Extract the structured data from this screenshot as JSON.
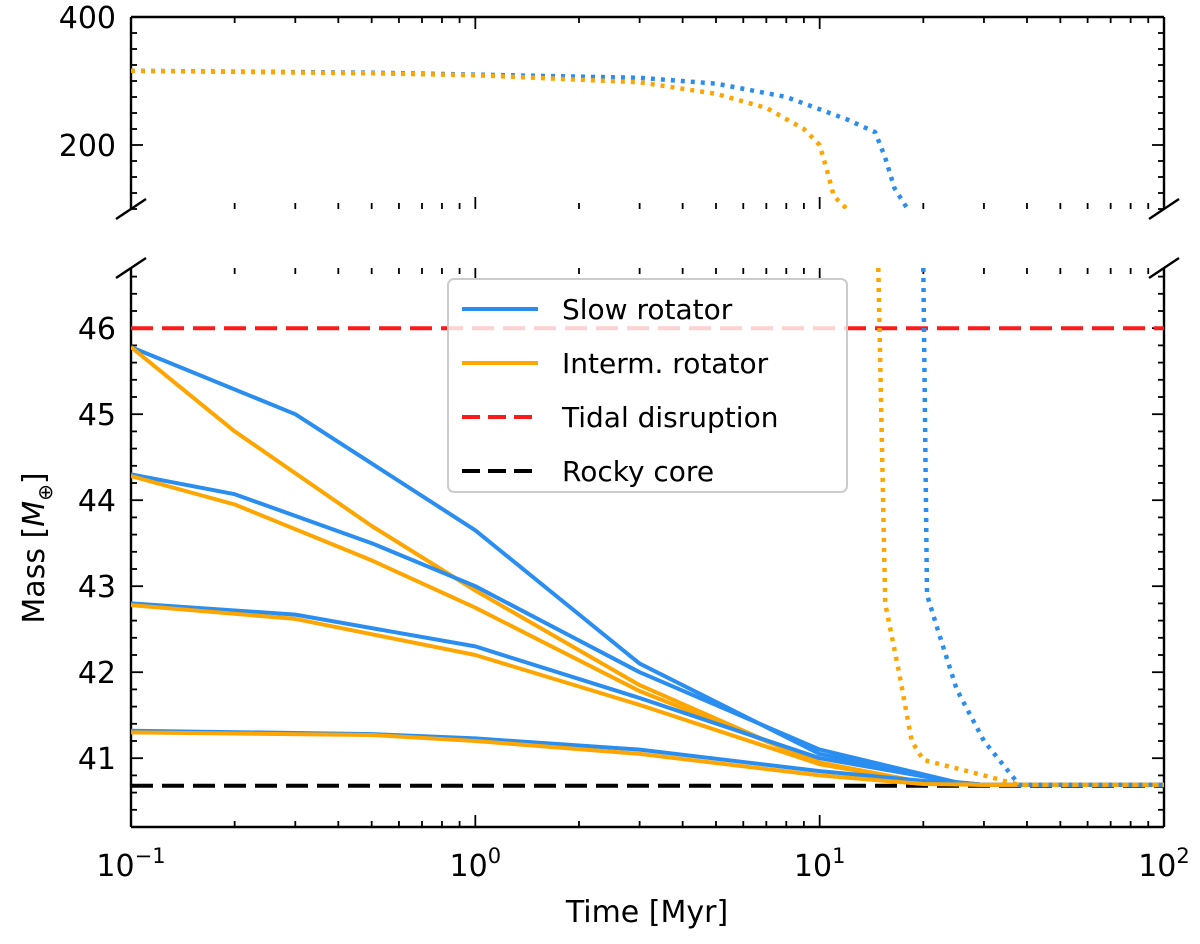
{
  "chart_data": {
    "type": "line",
    "title": "",
    "xlabel": "Time [Myr]",
    "ylabel": "Mass [",
    "ylabel_symbol": "M",
    "ylabel_subscript": "⊕",
    "ylabel_close": "]",
    "xscale": "log",
    "xlim": [
      0.1,
      100
    ],
    "x_ticks": [
      {
        "value": 0.1,
        "base": "10",
        "exp": "−1"
      },
      {
        "value": 1,
        "base": "10",
        "exp": "0"
      },
      {
        "value": 10,
        "base": "10",
        "exp": "1"
      },
      {
        "value": 100,
        "base": "10",
        "exp": "2"
      }
    ],
    "panels": {
      "top": {
        "ylim": [
          100,
          400
        ],
        "ticks": [
          {
            "value": 200,
            "label": "200"
          },
          {
            "value": 400,
            "label": "400"
          }
        ]
      },
      "bottom": {
        "ylim": [
          40.2,
          46.7
        ],
        "ticks": [
          {
            "value": 41,
            "label": "41"
          },
          {
            "value": 42,
            "label": "42"
          },
          {
            "value": 43,
            "label": "43"
          },
          {
            "value": 44,
            "label": "44"
          },
          {
            "value": 45,
            "label": "45"
          },
          {
            "value": 46,
            "label": "46"
          }
        ]
      }
    },
    "colors": {
      "slow": "#2a8ef0",
      "interm": "#ffa500",
      "tidal": "#ff1a1a",
      "core": "#000000"
    },
    "legend": {
      "location": "upper center",
      "entries": [
        {
          "label": "Slow rotator",
          "color": "#2a8ef0",
          "style": "solid"
        },
        {
          "label": "Interm. rotator",
          "color": "#ffa500",
          "style": "solid"
        },
        {
          "label": "Tidal disruption",
          "color": "#ff1a1a",
          "style": "dashed"
        },
        {
          "label": "Rocky core",
          "color": "#000000",
          "style": "dashed"
        }
      ]
    },
    "hlines": [
      {
        "name": "Tidal disruption",
        "y": 46.0,
        "color": "#ff1a1a"
      },
      {
        "name": "Rocky core",
        "y": 40.68,
        "color": "#000000"
      }
    ],
    "series": [
      {
        "name": "Slow rotator (46 Me start)",
        "rotator": "slow",
        "style": "solid",
        "x": [
          0.1,
          0.3,
          1,
          3,
          10,
          25,
          30,
          100
        ],
        "y": [
          45.78,
          45.0,
          43.65,
          42.1,
          41.05,
          40.72,
          40.69,
          40.69
        ]
      },
      {
        "name": "Interm. rotator (46 Me start)",
        "rotator": "interm",
        "style": "solid",
        "x": [
          0.1,
          0.2,
          0.5,
          1,
          3,
          10,
          20,
          30,
          100
        ],
        "y": [
          45.78,
          44.8,
          43.7,
          42.95,
          41.85,
          40.93,
          40.72,
          40.69,
          40.69
        ]
      },
      {
        "name": "Slow rotator (44.3 Me start)",
        "rotator": "slow",
        "style": "solid",
        "x": [
          0.1,
          0.2,
          0.5,
          1,
          3,
          10,
          25,
          30,
          100
        ],
        "y": [
          44.3,
          44.07,
          43.5,
          43.0,
          42.0,
          41.1,
          40.72,
          40.69,
          40.69
        ]
      },
      {
        "name": "Interm. rotator (44.3 Me start)",
        "rotator": "interm",
        "style": "solid",
        "x": [
          0.1,
          0.2,
          0.5,
          1,
          3,
          10,
          20,
          30,
          100
        ],
        "y": [
          44.28,
          43.95,
          43.3,
          42.75,
          41.78,
          40.95,
          40.72,
          40.69,
          40.69
        ]
      },
      {
        "name": "Slow rotator (42.8 Me start)",
        "rotator": "slow",
        "style": "solid",
        "x": [
          0.1,
          0.3,
          1,
          3,
          10,
          25,
          30,
          100
        ],
        "y": [
          42.8,
          42.67,
          42.3,
          41.7,
          41.0,
          40.72,
          40.69,
          40.69
        ]
      },
      {
        "name": "Interm. rotator (42.8 Me start)",
        "rotator": "interm",
        "style": "solid",
        "x": [
          0.1,
          0.3,
          1,
          3,
          10,
          20,
          30,
          100
        ],
        "y": [
          42.78,
          42.62,
          42.2,
          41.62,
          40.93,
          40.72,
          40.69,
          40.69
        ]
      },
      {
        "name": "Slow rotator (41.3 Me start)",
        "rotator": "slow",
        "style": "solid",
        "x": [
          0.1,
          0.5,
          1,
          3,
          10,
          25,
          30,
          100
        ],
        "y": [
          41.32,
          41.28,
          41.23,
          41.1,
          40.85,
          40.7,
          40.69,
          40.69
        ]
      },
      {
        "name": "Interm. rotator (41.3 Me start)",
        "rotator": "interm",
        "style": "solid",
        "x": [
          0.1,
          0.5,
          1,
          3,
          10,
          20,
          30,
          100
        ],
        "y": [
          41.3,
          41.27,
          41.2,
          41.05,
          40.8,
          40.7,
          40.69,
          40.69
        ]
      },
      {
        "name": "Slow rotator (large envelope, bottom)",
        "rotator": "slow",
        "style": "dotted",
        "x": [
          20,
          20.5,
          22,
          25,
          30,
          38,
          100
        ],
        "y": [
          46.7,
          42.9,
          42.5,
          41.8,
          41.2,
          40.69,
          40.69
        ]
      },
      {
        "name": "Interm. rotator (large envelope, bottom)",
        "rotator": "interm",
        "style": "dotted",
        "x": [
          14.8,
          15.5,
          17,
          18.5,
          20,
          30,
          38,
          100
        ],
        "y": [
          46.7,
          42.8,
          42.0,
          41.2,
          40.98,
          40.8,
          40.69,
          40.69
        ]
      },
      {
        "name": "Slow rotator (large envelope, top)",
        "rotator": "slow",
        "style": "dotted",
        "x": [
          0.1,
          0.5,
          1,
          3,
          5,
          8,
          12,
          14.5,
          15.5,
          16.5,
          18
        ],
        "y": [
          316,
          313,
          310,
          305,
          296,
          275,
          240,
          220,
          180,
          132,
          100
        ]
      },
      {
        "name": "Interm. rotator (large envelope, top)",
        "rotator": "interm",
        "style": "dotted",
        "x": [
          0.1,
          0.5,
          1,
          3,
          5,
          7,
          9,
          10,
          10.5,
          11,
          12
        ],
        "y": [
          316,
          312,
          309,
          298,
          280,
          258,
          225,
          200,
          160,
          120,
          100
        ]
      }
    ]
  }
}
